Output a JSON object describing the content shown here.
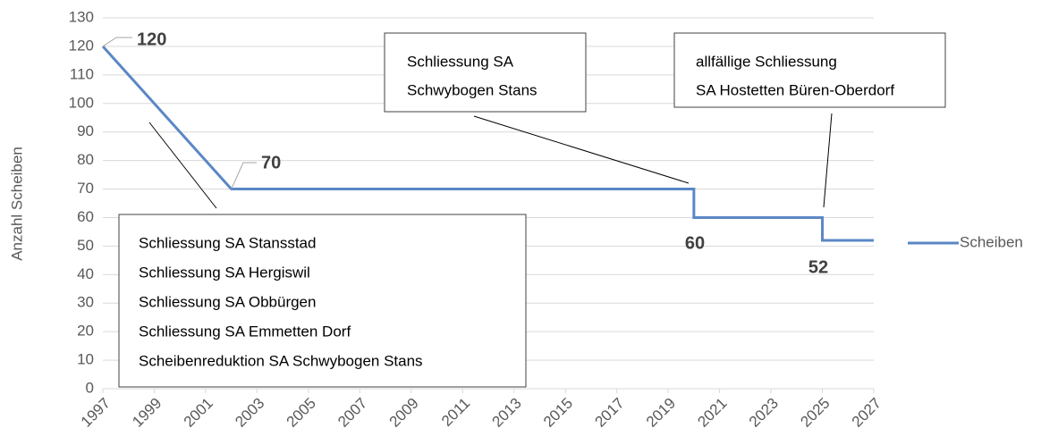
{
  "chart_data": {
    "type": "line",
    "ylabel": "Anzahl Scheiben",
    "x": [
      1997,
      2002,
      2020,
      2020,
      2025,
      2025,
      2027
    ],
    "series": [
      {
        "name": "Scheiben",
        "color": "#5b87c5",
        "values": [
          120,
          70,
          70,
          60,
          60,
          52,
          52
        ]
      }
    ],
    "xlim": [
      1997,
      2027
    ],
    "xticks": [
      1997,
      1999,
      2001,
      2003,
      2005,
      2007,
      2009,
      2011,
      2013,
      2015,
      2017,
      2019,
      2021,
      2023,
      2025,
      2027
    ],
    "ylim": [
      0,
      130
    ],
    "yticks": [
      0,
      10,
      20,
      30,
      40,
      50,
      60,
      70,
      80,
      90,
      100,
      110,
      120,
      130
    ],
    "grid": true,
    "legend": "right",
    "annotations": [
      {
        "lines": [
          "Schliessung SA Stansstad",
          "Schliessung SA Hergiswil",
          "Schliessung SA Obbürgen",
          "Schliessung SA Emmetten Dorf",
          "Scheibenreduktion SA Schwybogen Stans"
        ]
      },
      {
        "lines": [
          "Schliessung SA",
          "Schwybogen Stans"
        ]
      },
      {
        "lines": [
          "allfällige Schliessung",
          "SA Hostetten Büren-Oberdorf"
        ]
      }
    ]
  }
}
